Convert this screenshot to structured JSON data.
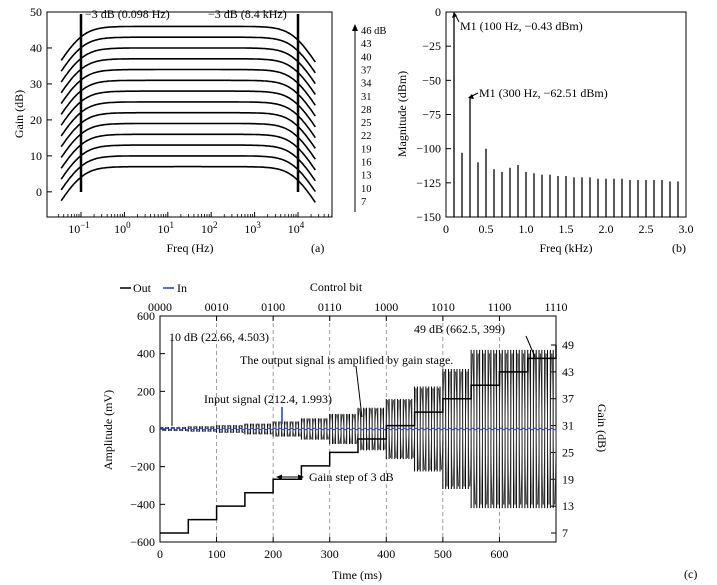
{
  "chart_data": [
    {
      "panel": "(a)",
      "type": "line",
      "xlabel": "Freq (Hz)",
      "ylabel": "Gain (dB)",
      "xscale": "log",
      "ylim": [
        -7,
        50
      ],
      "xlim": [
        0.03,
        30000
      ],
      "yticks": [
        "0",
        "10",
        "20",
        "30",
        "40",
        "50"
      ],
      "xticks": [
        {
          "base": "10",
          "exp": "−1",
          "value": 0.1
        },
        {
          "base": "10",
          "exp": "0",
          "value": 1
        },
        {
          "base": "10",
          "exp": "1",
          "value": 10
        },
        {
          "base": "10",
          "exp": "2",
          "value": 100
        },
        {
          "base": "10",
          "exp": "3",
          "value": 1000
        },
        {
          "base": "10",
          "exp": "4",
          "value": 10000
        }
      ],
      "gain_levels_db": [
        7,
        10,
        13,
        16,
        19,
        22,
        25,
        28,
        31,
        34,
        37,
        40,
        43,
        46
      ],
      "level_labels": [
        "46 dB",
        "43",
        "40",
        "37",
        "34",
        "31",
        "28",
        "25",
        "22",
        "19",
        "16",
        "13",
        "10",
        "7"
      ],
      "corner_low_hz": 0.098,
      "corner_high_hz": 8400,
      "annotations": [
        "−3 dB (0.098 Hz)",
        "−3 dB (8.4 kHz)"
      ]
    },
    {
      "panel": "(b)",
      "type": "bar",
      "xlabel": "Freq (kHz)",
      "ylabel": "Magnitude (dBm)",
      "xlim": [
        0,
        3.0
      ],
      "ylim": [
        -150,
        0
      ],
      "xticks": [
        "0",
        "0.5",
        "1.0",
        "1.5",
        "2.0",
        "2.5",
        "3.0"
      ],
      "yticks": [
        "0",
        "−25",
        "−50",
        "−75",
        "−100",
        "−125",
        "−150"
      ],
      "harmonics_khz": [
        0.1,
        0.2,
        0.3,
        0.4,
        0.5,
        0.6,
        0.7,
        0.8,
        0.9,
        1.0,
        1.1,
        1.2,
        1.3,
        1.4,
        1.5,
        1.6,
        1.7,
        1.8,
        1.9,
        2.0,
        2.1,
        2.2,
        2.3,
        2.4,
        2.5,
        2.6,
        2.7,
        2.8,
        2.9
      ],
      "magnitudes_dbm": [
        -0.43,
        -103,
        -62.51,
        -110,
        -100,
        -115,
        -117,
        -114,
        -112,
        -117,
        -118,
        -119,
        -119,
        -120,
        -120,
        -121,
        -121,
        -121,
        -122,
        -122,
        -122,
        -122,
        -123,
        -123,
        -123,
        -123,
        -123,
        -124,
        -124
      ],
      "annotations": [
        "M1 (100 Hz, −0.43 dBm)",
        "M1 (300 Hz, −62.51 dBm)"
      ]
    },
    {
      "panel": "(c)",
      "type": "line",
      "xlabel": "Time (ms)",
      "ylabel": "Amplitude (mV)",
      "y2label": "Gain (dB)",
      "toplabel": "Control bit",
      "xlim": [
        0,
        700
      ],
      "ylim": [
        -600,
        600
      ],
      "y2ticks": [
        "7",
        "13",
        "19",
        "25",
        "31",
        "37",
        "43",
        "49"
      ],
      "xticks": [
        "0",
        "100",
        "200",
        "300",
        "400",
        "500",
        "600"
      ],
      "yticks": [
        "600",
        "400",
        "200",
        "0",
        "−200",
        "−400",
        "−600"
      ],
      "top_ticks": [
        "0000",
        "0010",
        "0100",
        "0110",
        "1000",
        "1010",
        "1100",
        "1110"
      ],
      "legend": [
        "Out",
        "In"
      ],
      "legend_position": "top-left",
      "series_colors": {
        "Out": "#000000",
        "In": "#1f3fbf"
      },
      "gain_steps_db": [
        7,
        10,
        13,
        16,
        19,
        22,
        25,
        28,
        31,
        34,
        37,
        40,
        43,
        46,
        49
      ],
      "step_duration_ms": 50,
      "input_amplitude_mv": 4.5,
      "annotations": [
        "10 dB (22.66, 4.503)",
        "49 dB (662.5, 399)",
        "The output signal is amplified by gain stage.",
        "Input signal (212.4, 1.993)",
        "Gain step of 3 dB"
      ]
    }
  ],
  "panel_labels": [
    "(a)",
    "(b)",
    "(c)"
  ]
}
